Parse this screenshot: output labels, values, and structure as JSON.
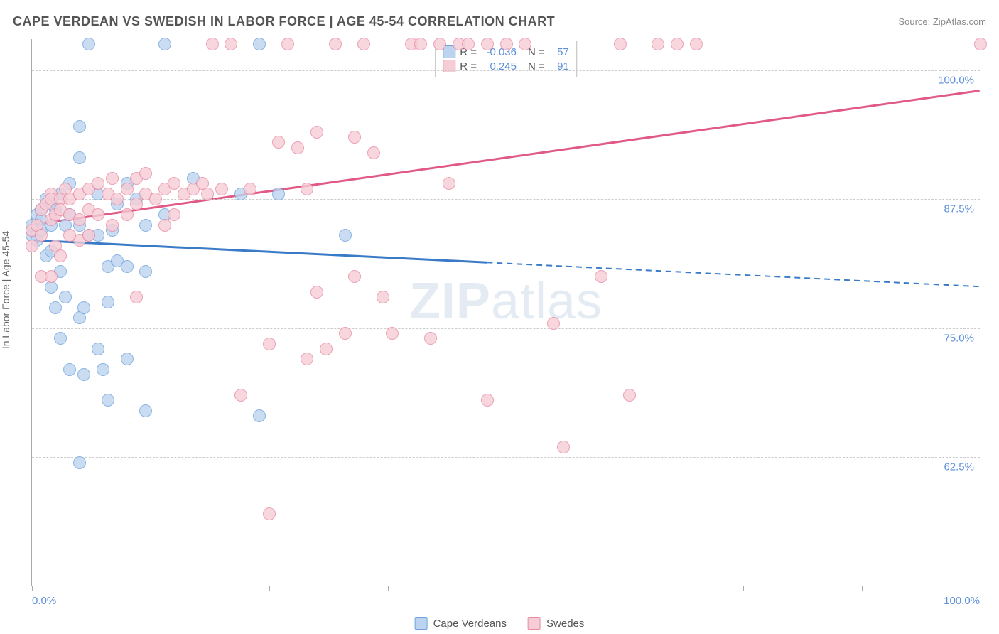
{
  "title": "CAPE VERDEAN VS SWEDISH IN LABOR FORCE | AGE 45-54 CORRELATION CHART",
  "source_label": "Source: ZipAtlas.com",
  "y_axis_label": "In Labor Force | Age 45-54",
  "watermark": {
    "bold": "ZIP",
    "rest": "atlas"
  },
  "chart": {
    "type": "scatter",
    "background_color": "#ffffff",
    "grid_color": "#cccccc",
    "axis_color": "#aaaaaa",
    "tick_label_color": "#5b8fd9",
    "xlim": [
      0,
      100
    ],
    "ylim": [
      50,
      103
    ],
    "x_ticks": [
      0,
      12.5,
      25,
      37.5,
      50,
      62.5,
      75,
      87.5,
      100
    ],
    "x_tick_labels": {
      "0": "0.0%",
      "100": "100.0%"
    },
    "y_grid": [
      62.5,
      75,
      87.5,
      100
    ],
    "y_tick_labels": {
      "62.5": "62.5%",
      "75": "75.0%",
      "87.5": "87.5%",
      "100": "100.0%"
    },
    "marker_radius": 9,
    "fill_opacity": 0.35
  },
  "series": [
    {
      "name": "Cape Verdeans",
      "color_fill": "#bcd4f0",
      "color_stroke": "#6fa3dc",
      "R": "-0.036",
      "N": "57",
      "trend": {
        "y_at_x0": 83.5,
        "y_at_x100": 79.0,
        "solid_until_x": 48,
        "line_color": "#3a7bc8",
        "line_width": 3
      },
      "points": [
        [
          0,
          84
        ],
        [
          0,
          85
        ],
        [
          0.5,
          83.5
        ],
        [
          0.5,
          86
        ],
        [
          1,
          86.5
        ],
        [
          1,
          85.5
        ],
        [
          1,
          84.5
        ],
        [
          1.5,
          82
        ],
        [
          1.5,
          87.5
        ],
        [
          2,
          87
        ],
        [
          2,
          85
        ],
        [
          2,
          82.5
        ],
        [
          2,
          79
        ],
        [
          2.5,
          86.5
        ],
        [
          2.5,
          77
        ],
        [
          3,
          88
        ],
        [
          3,
          80.5
        ],
        [
          3,
          74
        ],
        [
          3.5,
          85
        ],
        [
          3.5,
          78
        ],
        [
          4,
          86
        ],
        [
          4,
          71
        ],
        [
          4,
          89
        ],
        [
          5,
          94.5
        ],
        [
          5,
          91.5
        ],
        [
          5,
          85
        ],
        [
          5,
          76
        ],
        [
          5,
          62
        ],
        [
          5.5,
          77
        ],
        [
          5.5,
          70.5
        ],
        [
          6,
          102.5
        ],
        [
          6,
          84
        ],
        [
          7,
          73
        ],
        [
          7,
          84
        ],
        [
          7,
          88
        ],
        [
          7.5,
          71
        ],
        [
          8,
          81
        ],
        [
          8,
          77.5
        ],
        [
          8,
          68
        ],
        [
          8.5,
          84.5
        ],
        [
          9,
          87
        ],
        [
          9,
          81.5
        ],
        [
          10,
          89
        ],
        [
          10,
          81
        ],
        [
          10,
          72
        ],
        [
          11,
          87.5
        ],
        [
          12,
          85
        ],
        [
          12,
          80.5
        ],
        [
          12,
          67
        ],
        [
          14,
          102.5
        ],
        [
          14,
          86
        ],
        [
          17,
          89.5
        ],
        [
          22,
          88
        ],
        [
          24,
          66.5
        ],
        [
          24,
          102.5
        ],
        [
          26,
          88
        ],
        [
          33,
          84
        ]
      ]
    },
    {
      "name": "Swedes",
      "color_fill": "#f6cdd7",
      "color_stroke": "#e88aa3",
      "R": "0.245",
      "N": "91",
      "trend": {
        "y_at_x0": 85.0,
        "y_at_x100": 98.0,
        "solid_until_x": 100,
        "line_color": "#e15a85",
        "line_width": 3
      },
      "points": [
        [
          0,
          83
        ],
        [
          0,
          84.5
        ],
        [
          0.5,
          85
        ],
        [
          1,
          86.5
        ],
        [
          1,
          84
        ],
        [
          1,
          80
        ],
        [
          1.5,
          87
        ],
        [
          2,
          88
        ],
        [
          2,
          87.5
        ],
        [
          2,
          85.5
        ],
        [
          2.5,
          86
        ],
        [
          2.5,
          83
        ],
        [
          3,
          87.5
        ],
        [
          3,
          86.5
        ],
        [
          3.5,
          88.5
        ],
        [
          4,
          86
        ],
        [
          4,
          87.5
        ],
        [
          5,
          88
        ],
        [
          5,
          85.5
        ],
        [
          5,
          83.5
        ],
        [
          6,
          86.5
        ],
        [
          6,
          88.5
        ],
        [
          7,
          89
        ],
        [
          7,
          86
        ],
        [
          8,
          88
        ],
        [
          8.5,
          85
        ],
        [
          8.5,
          89.5
        ],
        [
          9,
          87.5
        ],
        [
          10,
          86
        ],
        [
          10,
          88.5
        ],
        [
          11,
          89.5
        ],
        [
          11,
          87
        ],
        [
          11,
          78
        ],
        [
          12,
          90
        ],
        [
          12,
          88
        ],
        [
          13,
          87.5
        ],
        [
          14,
          88.5
        ],
        [
          15,
          89
        ],
        [
          15,
          86
        ],
        [
          16,
          88
        ],
        [
          17,
          88.5
        ],
        [
          18,
          89
        ],
        [
          18.5,
          88
        ],
        [
          19,
          102.5
        ],
        [
          20,
          88.5
        ],
        [
          21,
          102.5
        ],
        [
          22,
          68.5
        ],
        [
          23,
          88.5
        ],
        [
          25,
          73.5
        ],
        [
          25,
          57
        ],
        [
          26,
          93
        ],
        [
          27,
          102.5
        ],
        [
          28,
          92.5
        ],
        [
          29,
          88.5
        ],
        [
          29,
          72
        ],
        [
          30,
          94
        ],
        [
          30,
          78.5
        ],
        [
          31,
          73
        ],
        [
          32,
          102.5
        ],
        [
          33,
          74.5
        ],
        [
          34,
          93.5
        ],
        [
          34,
          80
        ],
        [
          35,
          102.5
        ],
        [
          36,
          92
        ],
        [
          37,
          78
        ],
        [
          38,
          74.5
        ],
        [
          40,
          102.5
        ],
        [
          41,
          102.5
        ],
        [
          42,
          74
        ],
        [
          43,
          102.5
        ],
        [
          44,
          89
        ],
        [
          45,
          102.5
        ],
        [
          46,
          102.5
        ],
        [
          48,
          102.5
        ],
        [
          48,
          68
        ],
        [
          50,
          102.5
        ],
        [
          52,
          102.5
        ],
        [
          55,
          75.5
        ],
        [
          56,
          63.5
        ],
        [
          60,
          80
        ],
        [
          62,
          102.5
        ],
        [
          63,
          68.5
        ],
        [
          66,
          102.5
        ],
        [
          68,
          102.5
        ],
        [
          70,
          102.5
        ],
        [
          100,
          102.5
        ],
        [
          14,
          85
        ],
        [
          6,
          84
        ],
        [
          4,
          84
        ],
        [
          3,
          82
        ],
        [
          2,
          80
        ]
      ]
    }
  ],
  "legend": {
    "items": [
      {
        "label": "Cape Verdeans",
        "fill": "#bcd4f0",
        "stroke": "#6fa3dc"
      },
      {
        "label": "Swedes",
        "fill": "#f6cdd7",
        "stroke": "#e88aa3"
      }
    ]
  }
}
